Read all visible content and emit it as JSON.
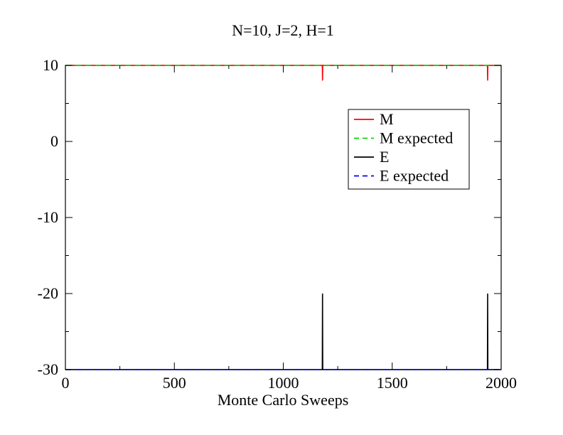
{
  "chart_data": {
    "type": "line",
    "title": "N=10, J=2, H=1",
    "subtitle": "",
    "xlabel": "Monte Carlo Sweeps",
    "ylabel": "",
    "xlim": [
      0,
      2000
    ],
    "ylim": [
      -30,
      10
    ],
    "x_ticks": [
      0,
      500,
      1000,
      1500,
      2000
    ],
    "x_tick_labels": [
      "0",
      "500",
      "1000",
      "1500",
      "2000"
    ],
    "x_minor_step": 250,
    "y_ticks": [
      -30,
      -20,
      -10,
      0,
      10
    ],
    "y_tick_labels": [
      "-30",
      "-20",
      "-10",
      "0",
      "10"
    ],
    "y_minor_step": 5,
    "grid": false,
    "legend_position": "upper-right",
    "series": [
      {
        "name": "M",
        "color": "#ff0000",
        "dash": "solid",
        "points": [
          [
            0,
            10
          ],
          [
            1179,
            10
          ],
          [
            1180,
            8
          ],
          [
            1181,
            10
          ],
          [
            1937,
            10
          ],
          [
            1938,
            8
          ],
          [
            1939,
            10
          ],
          [
            2000,
            10
          ]
        ]
      },
      {
        "name": "M expected",
        "color": "#00dd00",
        "dash": "dashed",
        "points": [
          [
            0,
            10
          ],
          [
            2000,
            10
          ]
        ]
      },
      {
        "name": "E",
        "color": "#000000",
        "dash": "solid",
        "points": [
          [
            0,
            -30
          ],
          [
            1179,
            -30
          ],
          [
            1180,
            -20
          ],
          [
            1181,
            -30
          ],
          [
            1937,
            -30
          ],
          [
            1938,
            -20
          ],
          [
            1939,
            -30
          ],
          [
            2000,
            -30
          ]
        ]
      },
      {
        "name": "E expected",
        "color": "#0000ff",
        "dash": "dashed",
        "points": [
          [
            0,
            -30
          ],
          [
            2000,
            -30
          ]
        ]
      }
    ]
  }
}
